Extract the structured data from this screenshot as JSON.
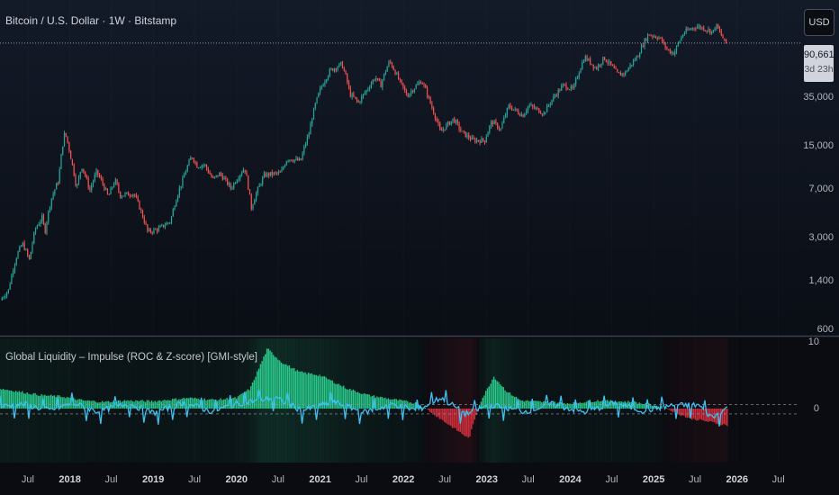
{
  "header": {
    "symbol_title": "Bitcoin / U.S. Dollar · 1W · Bitstamp",
    "currency": "USD"
  },
  "indicator": {
    "title": "Global Liquidity – Impulse (ROC & Z-score) [GMI-style]"
  },
  "price_tag": {
    "price": "90,661",
    "countdown": "3d 23h"
  },
  "colors": {
    "up": "#26a69a",
    "down": "#ef5350",
    "hist_up": "#2ee59d",
    "hist_down": "#f23645",
    "zscore_line": "#3fc1f5",
    "price_line": "#9598a1"
  },
  "chart_data": [
    {
      "type": "candlestick",
      "scale": "log",
      "ylim": [
        600,
        150000
      ],
      "y_ticks": [
        600,
        1400,
        3000,
        7000,
        15000,
        35000
      ],
      "y_tick_labels": [
        "600",
        "1,400",
        "3,000",
        "7,000",
        "15,000",
        "35,000"
      ],
      "x_range": [
        "2017-03",
        "2026-10"
      ],
      "x_ticks": [
        "2017-07",
        "2018-01",
        "2018-07",
        "2019-01",
        "2019-07",
        "2020-01",
        "2020-07",
        "2021-01",
        "2021-07",
        "2022-01",
        "2022-07",
        "2023-01",
        "2023-07",
        "2024-01",
        "2024-07",
        "2025-01",
        "2025-07",
        "2026-01",
        "2026-07"
      ],
      "x_tick_labels": [
        "Jul",
        "2018",
        "Jul",
        "2019",
        "Jul",
        "2020",
        "Jul",
        "2021",
        "Jul",
        "2022",
        "Jul",
        "2023",
        "Jul",
        "2024",
        "Jul",
        "2025",
        "Jul",
        "2026",
        "Jul"
      ],
      "current_price": 90661,
      "price_path": [
        [
          "2017-03-10",
          1000
        ],
        [
          "2017-04-15",
          1200
        ],
        [
          "2017-05-25",
          2300
        ],
        [
          "2017-06-15",
          2700
        ],
        [
          "2017-07-15",
          2000
        ],
        [
          "2017-08-10",
          3500
        ],
        [
          "2017-09-10",
          4300
        ],
        [
          "2017-09-20",
          3200
        ],
        [
          "2017-10-20",
          6000
        ],
        [
          "2017-11-20",
          8200
        ],
        [
          "2017-12-17",
          19000
        ],
        [
          "2018-01-15",
          11500
        ],
        [
          "2018-02-06",
          7000
        ],
        [
          "2018-03-01",
          10500
        ],
        [
          "2018-04-05",
          6800
        ],
        [
          "2018-05-05",
          9500
        ],
        [
          "2018-06-25",
          6100
        ],
        [
          "2018-07-25",
          8200
        ],
        [
          "2018-08-15",
          6300
        ],
        [
          "2018-10-15",
          6500
        ],
        [
          "2018-11-20",
          4500
        ],
        [
          "2018-12-15",
          3300
        ],
        [
          "2019-02-01",
          3500
        ],
        [
          "2019-03-25",
          4000
        ],
        [
          "2019-05-15",
          8000
        ],
        [
          "2019-06-26",
          12500
        ],
        [
          "2019-07-20",
          10500
        ],
        [
          "2019-08-20",
          10800
        ],
        [
          "2019-09-25",
          8300
        ],
        [
          "2019-10-27",
          9200
        ],
        [
          "2019-12-15",
          7100
        ],
        [
          "2020-02-12",
          10200
        ],
        [
          "2020-03-12",
          5000
        ],
        [
          "2020-05-10",
          9000
        ],
        [
          "2020-07-20",
          9300
        ],
        [
          "2020-08-17",
          12000
        ],
        [
          "2020-10-15",
          11500
        ],
        [
          "2020-11-20",
          18500
        ],
        [
          "2021-01-08",
          40000
        ],
        [
          "2021-02-21",
          56000
        ],
        [
          "2021-04-13",
          63000
        ],
        [
          "2021-05-19",
          37000
        ],
        [
          "2021-06-25",
          32000
        ],
        [
          "2021-08-01",
          40000
        ],
        [
          "2021-09-07",
          50000
        ],
        [
          "2021-09-30",
          43000
        ],
        [
          "2021-11-08",
          66000
        ],
        [
          "2021-12-20",
          47000
        ],
        [
          "2022-01-24",
          36000
        ],
        [
          "2022-03-28",
          47000
        ],
        [
          "2022-05-10",
          30000
        ],
        [
          "2022-06-18",
          19000
        ],
        [
          "2022-08-15",
          24000
        ],
        [
          "2022-09-20",
          19000
        ],
        [
          "2022-11-09",
          16500
        ],
        [
          "2022-12-30",
          16500
        ],
        [
          "2023-01-30",
          23000
        ],
        [
          "2023-03-10",
          20000
        ],
        [
          "2023-04-14",
          30000
        ],
        [
          "2023-06-15",
          25500
        ],
        [
          "2023-07-10",
          30500
        ],
        [
          "2023-09-15",
          26500
        ],
        [
          "2023-10-25",
          34500
        ],
        [
          "2023-12-10",
          43500
        ],
        [
          "2024-01-22",
          40000
        ],
        [
          "2024-03-12",
          71000
        ],
        [
          "2024-05-01",
          58000
        ],
        [
          "2024-06-05",
          70000
        ],
        [
          "2024-08-05",
          52000
        ],
        [
          "2024-09-06",
          54000
        ],
        [
          "2024-10-29",
          72000
        ],
        [
          "2024-12-16",
          106000
        ],
        [
          "2025-02-01",
          100000
        ],
        [
          "2025-03-10",
          80000
        ],
        [
          "2025-04-07",
          76000
        ],
        [
          "2025-05-20",
          109000
        ],
        [
          "2025-07-14",
          122000
        ],
        [
          "2025-08-14",
          118000
        ],
        [
          "2025-09-25",
          110000
        ],
        [
          "2025-10-06",
          125000
        ],
        [
          "2025-11-17",
          90661
        ]
      ]
    },
    {
      "type": "bar",
      "name_from_title": "Global Liquidity – Impulse (ROC & Z-score) [GMI-style]",
      "ylim": [
        -5,
        10
      ],
      "y_ticks": [
        0,
        10
      ],
      "y_tick_labels": [
        "0",
        "10"
      ],
      "reference_lines": [
        0.6,
        -0.8
      ],
      "series": [
        {
          "kind": "roc_histogram",
          "points": [
            [
              "2017-03-01",
              3.0
            ],
            [
              "2017-09-01",
              2.0
            ],
            [
              "2017-12-01",
              1.8
            ],
            [
              "2018-03-01",
              1.2
            ],
            [
              "2018-06-01",
              1.0
            ],
            [
              "2018-09-01",
              1.2
            ],
            [
              "2019-01-01",
              1.1
            ],
            [
              "2019-06-01",
              1.6
            ],
            [
              "2019-10-01",
              1.3
            ],
            [
              "2020-01-01",
              1.6
            ],
            [
              "2020-03-01",
              3.0
            ],
            [
              "2020-05-15",
              9.0
            ],
            [
              "2020-07-15",
              7.0
            ],
            [
              "2020-10-01",
              5.5
            ],
            [
              "2021-01-01",
              5.0
            ],
            [
              "2021-05-01",
              3.0
            ],
            [
              "2021-08-01",
              2.0
            ],
            [
              "2021-12-01",
              1.3
            ],
            [
              "2022-03-01",
              0.8
            ],
            [
              "2022-05-01",
              -0.5
            ],
            [
              "2022-07-01",
              -2.0
            ],
            [
              "2022-10-15",
              -4.5
            ],
            [
              "2022-12-01",
              0.8
            ],
            [
              "2023-02-01",
              4.8
            ],
            [
              "2023-04-01",
              2.5
            ],
            [
              "2023-06-01",
              1.2
            ],
            [
              "2023-09-01",
              1.0
            ],
            [
              "2024-01-01",
              0.8
            ],
            [
              "2024-05-01",
              1.2
            ],
            [
              "2024-10-01",
              1.0
            ],
            [
              "2025-01-01",
              0.5
            ],
            [
              "2025-03-01",
              0.0
            ],
            [
              "2025-06-01",
              -1.4
            ],
            [
              "2025-11-20",
              -2.5
            ]
          ]
        },
        {
          "kind": "zscore_line",
          "points": [
            [
              "2017-03-01",
              0.6
            ],
            [
              "2017-06-15",
              1.2
            ],
            [
              "2017-10-01",
              -0.5
            ],
            [
              "2018-01-15",
              1.5
            ],
            [
              "2018-05-01",
              -0.8
            ],
            [
              "2018-09-15",
              1.4
            ],
            [
              "2019-01-01",
              -1.2
            ],
            [
              "2019-05-15",
              1.6
            ],
            [
              "2019-09-15",
              -0.8
            ],
            [
              "2020-01-01",
              1.3
            ],
            [
              "2020-06-15",
              3.0
            ],
            [
              "2020-10-15",
              -0.5
            ],
            [
              "2021-03-01",
              1.8
            ],
            [
              "2021-07-15",
              -1.0
            ],
            [
              "2021-11-15",
              1.2
            ],
            [
              "2022-03-01",
              -0.5
            ],
            [
              "2022-06-15",
              3.0
            ],
            [
              "2022-10-01",
              -1.5
            ],
            [
              "2023-01-15",
              1.0
            ],
            [
              "2023-06-15",
              -0.8
            ],
            [
              "2023-10-15",
              1.2
            ],
            [
              "2024-03-01",
              -1.0
            ],
            [
              "2024-07-15",
              1.5
            ],
            [
              "2024-11-15",
              -0.6
            ],
            [
              "2025-03-15",
              0.8
            ],
            [
              "2025-07-15",
              1.0
            ],
            [
              "2025-09-15",
              -2.5
            ],
            [
              "2025-11-20",
              0.3
            ]
          ]
        }
      ]
    }
  ]
}
